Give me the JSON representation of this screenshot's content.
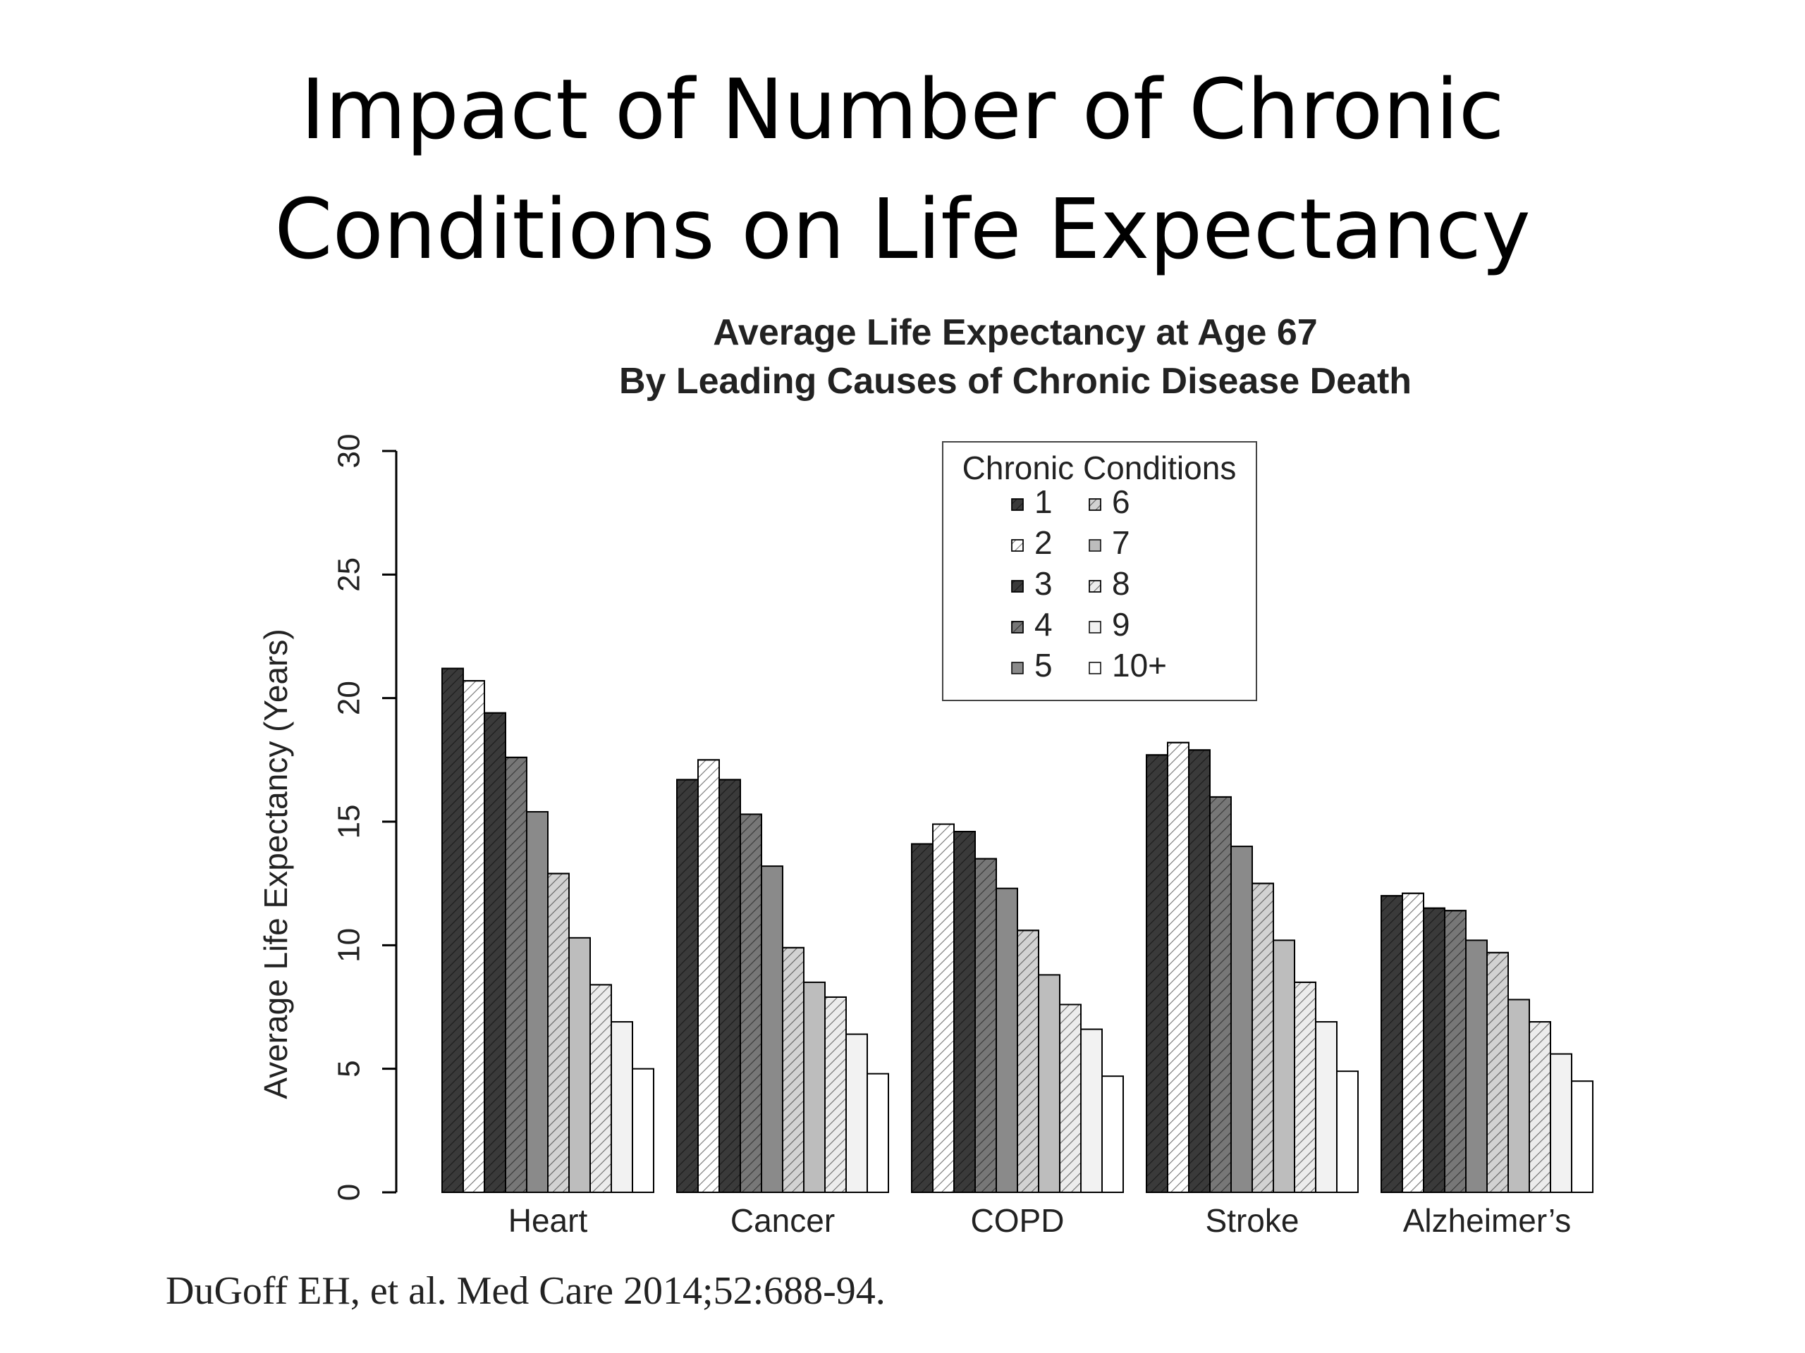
{
  "slide": {
    "title_line1": "Impact of Number of Chronic",
    "title_line2": "Conditions on Life Expectancy",
    "citation": "DuGoff EH, et al. Med Care 2014;52:688-94."
  },
  "chart_data": {
    "type": "bar",
    "title_line1": "Average Life Expectancy at Age 67",
    "title_line2": "By Leading Causes of Chronic Disease Death",
    "xlabel": "",
    "ylabel": "Average Life Expectancy (Years)",
    "ylim": [
      0,
      30
    ],
    "yticks": [
      0,
      5,
      10,
      15,
      20,
      25,
      30
    ],
    "grid": false,
    "legend": {
      "title": "Chronic Conditions",
      "placement": "top-right"
    },
    "categories": [
      "Heart",
      "Cancer",
      "COPD",
      "Stroke",
      "Alzheimer’s"
    ],
    "series": [
      {
        "name": "1",
        "fill": "#3a3a3a",
        "hatch": true,
        "values": [
          21.2,
          16.7,
          14.1,
          17.7,
          12.0
        ]
      },
      {
        "name": "2",
        "fill": "#ffffff",
        "hatch": true,
        "values": [
          20.7,
          17.5,
          14.9,
          18.2,
          12.1
        ]
      },
      {
        "name": "3",
        "fill": "#3a3a3a",
        "hatch": true,
        "values": [
          19.4,
          16.7,
          14.6,
          17.9,
          11.5
        ]
      },
      {
        "name": "4",
        "fill": "#777777",
        "hatch": true,
        "values": [
          17.6,
          15.3,
          13.5,
          16.0,
          11.4
        ]
      },
      {
        "name": "5",
        "fill": "#8a8a8a",
        "hatch": false,
        "values": [
          15.4,
          13.2,
          12.3,
          14.0,
          10.2
        ]
      },
      {
        "name": "6",
        "fill": "#d2d2d2",
        "hatch": true,
        "values": [
          12.9,
          9.9,
          10.6,
          12.5,
          9.7
        ]
      },
      {
        "name": "7",
        "fill": "#bdbdbd",
        "hatch": false,
        "values": [
          10.3,
          8.5,
          8.8,
          10.2,
          7.8
        ]
      },
      {
        "name": "8",
        "fill": "#ececec",
        "hatch": true,
        "values": [
          8.4,
          7.9,
          7.6,
          8.5,
          6.9
        ]
      },
      {
        "name": "9",
        "fill": "#f2f2f2",
        "hatch": false,
        "values": [
          6.9,
          6.4,
          6.6,
          6.9,
          5.6
        ]
      },
      {
        "name": "10+",
        "fill": "#ffffff",
        "hatch": false,
        "values": [
          5.0,
          4.8,
          4.7,
          4.9,
          4.5
        ]
      }
    ]
  }
}
